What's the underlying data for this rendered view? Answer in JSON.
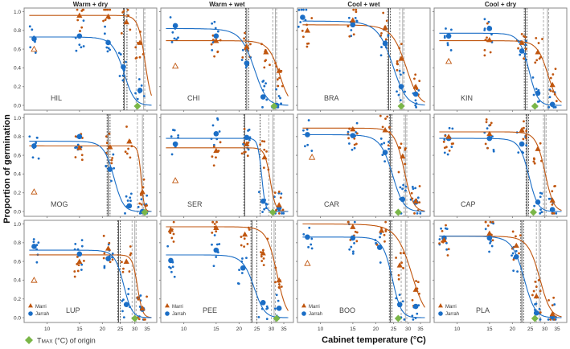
{
  "chart_data": {
    "type": "scatter",
    "title": "",
    "xlabel": "Cabinet temperature (°C)",
    "ylabel": "Proportion of germination",
    "x_scale": "log",
    "xlim": [
      7.5,
      39.5
    ],
    "ylim": [
      0,
      1
    ],
    "x_ticks": [
      10,
      15,
      20,
      25,
      30,
      35
    ],
    "y_ticks": [
      "0.0",
      "0.2",
      "0.4",
      "0.6",
      "0.8",
      "1.0"
    ],
    "conditions": [
      "Warm + dry",
      "Warm + wet",
      "Cool + wet",
      "Cool + dry"
    ],
    "legend": {
      "marri": "Marri",
      "jarrah": "Jarrah",
      "tmax": "TMAX (°C) of origin",
      "tmax_main": "T",
      "tmax_sub": "MAX",
      "tmax_rest": " (°C) of origin"
    },
    "colors": {
      "marri": "#c0560f",
      "jarrah": "#1b6ec6",
      "tmax": "#7ab648",
      "topt_jarrah": "#333333",
      "topt_marri": "#aaaaaa"
    },
    "panels": [
      {
        "site": "HIL",
        "marri": {
          "plateau": 0.96,
          "t50": 34,
          "k": 0.7,
          "means": [
            [
              15,
              0.96
            ],
            [
              21.5,
              0.95
            ],
            [
              27,
              0.89
            ],
            [
              32,
              0.67
            ]
          ],
          "hollow": [
            8.5,
            0.6
          ]
        },
        "jarrah": {
          "plateau": 0.73,
          "t50": 26,
          "k": 0.55,
          "means": [
            [
              8.5,
              0.71
            ],
            [
              15,
              0.74
            ],
            [
              21.5,
              0.67
            ],
            [
              26,
              0.41
            ],
            [
              32,
              0.16
            ]
          ]
        },
        "tmax": 31,
        "lines_jarrah": [
          26.3,
          27.2
        ],
        "lines_marri": [
          30.5,
          33.5
        ]
      },
      {
        "site": "CHI",
        "marri": {
          "plateau": 0.69,
          "t50": 33,
          "k": 0.45,
          "means": [
            [
              15,
              0.69
            ],
            [
              22,
              0.63
            ],
            [
              28,
              0.57
            ],
            [
              33,
              0.37
            ]
          ],
          "hollow": [
            9,
            0.42
          ]
        },
        "jarrah": {
          "plateau": 0.82,
          "t50": 24,
          "k": 0.5,
          "means": [
            [
              9,
              0.85
            ],
            [
              15,
              0.74
            ],
            [
              22,
              0.45
            ],
            [
              27,
              0.09
            ],
            [
              32,
              0.0
            ]
          ]
        },
        "tmax": 31,
        "lines_jarrah": [
          22,
          22.6
        ],
        "lines_marri": [
          30.5,
          31.5
        ]
      },
      {
        "site": "BRA",
        "marri": {
          "plateau": 0.86,
          "t50": 29,
          "k": 0.4,
          "means": [
            [
              8.5,
              0.8
            ],
            [
              15,
              0.91
            ],
            [
              22.5,
              0.83
            ],
            [
              27.5,
              0.5
            ],
            [
              33,
              0.2
            ]
          ]
        },
        "jarrah": {
          "plateau": 0.9,
          "t50": 24.5,
          "k": 0.45,
          "means": [
            [
              8,
              0.94
            ],
            [
              15,
              0.86
            ],
            [
              22.5,
              0.66
            ],
            [
              27.5,
              0.2
            ],
            [
              33,
              0.12
            ]
          ]
        },
        "tmax": 27.5,
        "lines_jarrah": [
          23.5,
          24
        ],
        "lines_marri": [
          27,
          28
        ]
      },
      {
        "site": "KIN",
        "marri": {
          "plateau": 0.69,
          "t50": 31,
          "k": 0.5,
          "means": [
            [
              15,
              0.7
            ],
            [
              22.5,
              0.67
            ],
            [
              27.5,
              0.57
            ],
            [
              33,
              0.22
            ]
          ],
          "hollow": [
            9,
            0.47
          ]
        },
        "jarrah": {
          "plateau": 0.77,
          "t50": 24.5,
          "k": 0.7,
          "means": [
            [
              9,
              0.74
            ],
            [
              15,
              0.82
            ],
            [
              22.5,
              0.58
            ],
            [
              27.5,
              0.13
            ],
            [
              33,
              0.01
            ]
          ]
        },
        "tmax": 26.5,
        "lines_jarrah": [
          23.5,
          24
        ],
        "lines_marri": [
          29.5,
          31
        ]
      },
      {
        "site": "MOG",
        "marri": {
          "plateau": 0.7,
          "t50": 32.5,
          "k": 1.6,
          "means": [
            [
              15,
              0.68
            ],
            [
              22,
              0.69
            ],
            [
              28,
              0.75
            ],
            [
              33,
              0.21
            ]
          ],
          "hollow": [
            8.5,
            0.21
          ]
        },
        "jarrah": {
          "plateau": 0.75,
          "t50": 23,
          "k": 0.7,
          "means": [
            [
              8.5,
              0.7
            ],
            [
              15,
              0.8
            ],
            [
              22,
              0.45
            ],
            [
              28,
              0.06
            ],
            [
              33,
              0.0
            ]
          ]
        },
        "tmax": 34,
        "lines_jarrah": [
          21.5,
          22
        ],
        "lines_marri": [
          31,
          33
        ]
      },
      {
        "site": "SER",
        "marri": {
          "plateau": 0.68,
          "t50": 29.5,
          "k": 1.0,
          "means": [
            [
              15,
              0.65
            ],
            [
              22,
              0.72
            ],
            [
              27.5,
              0.58
            ],
            [
              33,
              0.07
            ]
          ],
          "hollow": [
            9,
            0.33
          ]
        },
        "jarrah": {
          "plateau": 0.78,
          "t50": 26.5,
          "k": 1.6,
          "means": [
            [
              9,
              0.72
            ],
            [
              15,
              0.83
            ],
            [
              22,
              0.79
            ],
            [
              27,
              0.11
            ],
            [
              33,
              0.04
            ]
          ]
        },
        "tmax": 30.5,
        "lines_jarrah": [
          21.5,
          26
        ],
        "lines_marri": [
          29,
          30.5
        ]
      },
      {
        "site": "CAR",
        "marri": {
          "plateau": 0.89,
          "t50": 28.5,
          "k": 0.6,
          "means": [
            [
              15,
              0.88
            ],
            [
              22.5,
              0.87
            ],
            [
              28,
              0.59
            ],
            [
              33,
              0.11
            ]
          ],
          "hollow": [
            9,
            0.58
          ]
        },
        "jarrah": {
          "plateau": 0.82,
          "t50": 24.5,
          "k": 0.55,
          "means": [
            [
              8.5,
              0.82
            ],
            [
              15,
              0.81
            ],
            [
              22.5,
              0.63
            ],
            [
              28,
              0.13
            ],
            [
              33,
              0.1
            ]
          ]
        },
        "tmax": 26.5,
        "lines_jarrah": [
          24,
          24.5
        ],
        "lines_marri": [
          28.5,
          29
        ]
      },
      {
        "site": "CAP",
        "marri": {
          "plateau": 0.85,
          "t50": 30,
          "k": 0.6,
          "means": [
            [
              9,
              0.8
            ],
            [
              15,
              0.83
            ],
            [
              22.5,
              0.87
            ],
            [
              27.5,
              0.67
            ],
            [
              33,
              0.12
            ]
          ]
        },
        "jarrah": {
          "plateau": 0.78,
          "t50": 24.5,
          "k": 0.7,
          "means": [
            [
              9,
              0.78
            ],
            [
              15,
              0.78
            ],
            [
              22.5,
              0.72
            ],
            [
              27.5,
              0.1
            ],
            [
              33,
              0.02
            ]
          ]
        },
        "tmax": 26,
        "lines_jarrah": [
          24,
          24.5
        ],
        "lines_marri": [
          29.5,
          30
        ]
      },
      {
        "site": "LUP",
        "marri": {
          "plateau": 0.67,
          "t50": 31,
          "k": 1.0,
          "means": [
            [
              15,
              0.6
            ],
            [
              21.5,
              0.74
            ],
            [
              27,
              0.6
            ],
            [
              33,
              0.1
            ]
          ],
          "hollow": [
            8.5,
            0.4
          ]
        },
        "jarrah": {
          "plateau": 0.72,
          "t50": 26,
          "k": 0.7,
          "means": [
            [
              8.5,
              0.76
            ],
            [
              15,
              0.68
            ],
            [
              21.5,
              0.63
            ],
            [
              27,
              0.14
            ],
            [
              33,
              0.09
            ]
          ]
        },
        "tmax": 30,
        "lines_jarrah": [
          24.5,
          25
        ],
        "lines_marri": [
          29,
          30
        ]
      },
      {
        "site": "PEE",
        "marri": {
          "plateau": 0.97,
          "t50": 32,
          "k": 0.5,
          "means": [
            [
              8.5,
              0.94
            ],
            [
              15,
              0.96
            ],
            [
              21.5,
              0.89
            ],
            [
              27,
              0.69
            ],
            [
              33,
              0.4
            ]
          ]
        },
        "jarrah": {
          "plateau": 0.67,
          "t50": 24,
          "k": 0.6,
          "means": [
            [
              8.5,
              0.61
            ],
            [
              15,
              0.72
            ],
            [
              21,
              0.53
            ],
            [
              27,
              0.16
            ],
            [
              33,
              0.1
            ]
          ]
        },
        "tmax": 32,
        "lines_jarrah": [
          23.5,
          25
        ],
        "lines_marri": [
          30,
          31
        ]
      },
      {
        "site": "BOO",
        "marri": {
          "plateau": 1.0,
          "t50": 31,
          "k": 0.35,
          "means": [
            [
              15,
              0.97
            ],
            [
              21.5,
              0.93
            ],
            [
              27,
              0.56
            ],
            [
              33,
              0.3
            ]
          ],
          "hollow": [
            8.5,
            0.58
          ]
        },
        "jarrah": {
          "plateau": 0.86,
          "t50": 24.5,
          "k": 0.7,
          "means": [
            [
              8.5,
              0.86
            ],
            [
              15,
              0.85
            ],
            [
              21,
              0.75
            ],
            [
              27,
              0.14
            ],
            [
              33,
              0.12
            ]
          ]
        },
        "tmax": 26.5,
        "lines_jarrah": [
          24,
          24.5
        ],
        "lines_marri": [
          27.5,
          29
        ]
      },
      {
        "site": "PLA",
        "marri": {
          "plateau": 0.87,
          "t50": 28,
          "k": 0.5,
          "means": [
            [
              8.5,
              0.83
            ],
            [
              15,
              0.9
            ],
            [
              21,
              0.77
            ],
            [
              27,
              0.23
            ],
            [
              33,
              0.04
            ]
          ]
        },
        "jarrah": {
          "plateau": 0.87,
          "t50": 23,
          "k": 0.6,
          "means": [
            [
              8.5,
              0.85
            ],
            [
              15,
              0.85
            ],
            [
              21,
              0.65
            ],
            [
              27,
              0.05
            ],
            [
              33,
              0.01
            ]
          ]
        },
        "tmax": 26.5,
        "lines_jarrah": [
          22.5,
          23
        ],
        "lines_marri": [
          27,
          28
        ]
      }
    ]
  }
}
